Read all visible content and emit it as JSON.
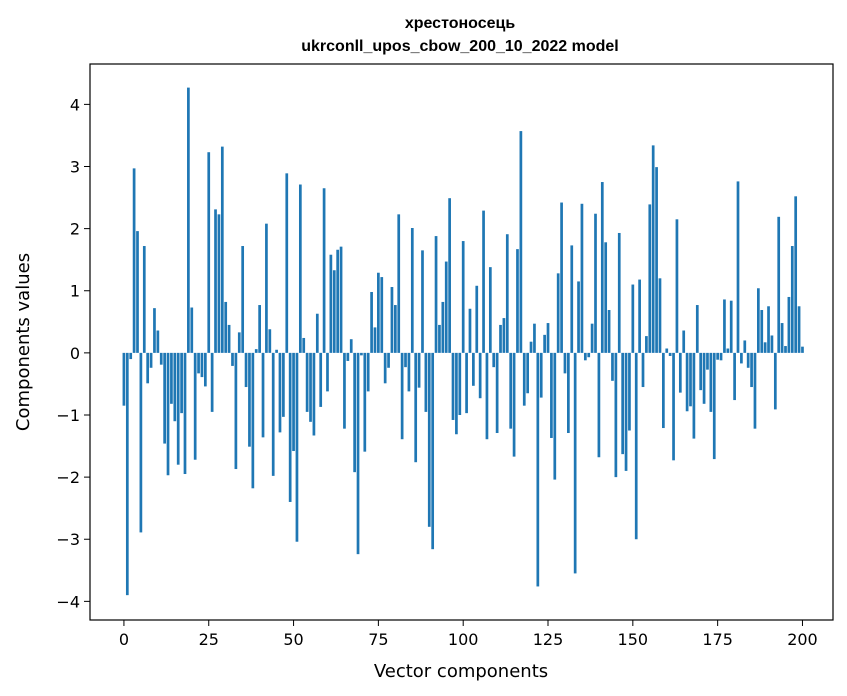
{
  "chart_data": {
    "type": "bar",
    "title_line1": "хрестоносець",
    "title_line2": "ukrconll_upos_cbow_200_10_2022 model",
    "xlabel": "Vector components",
    "ylabel": "Components values",
    "xlim": [
      -10,
      209
    ],
    "ylim": [
      -4.3,
      4.65
    ],
    "xticks": [
      0,
      25,
      50,
      75,
      100,
      125,
      150,
      175,
      200
    ],
    "yticks": [
      -4,
      -3,
      -2,
      -1,
      0,
      1,
      2,
      3,
      4
    ],
    "bar_color": "#1f77b4",
    "grid": false,
    "legend": "none",
    "values": [
      -0.85,
      -3.9,
      -0.1,
      2.97,
      1.96,
      -2.89,
      1.72,
      -0.49,
      -0.24,
      0.72,
      0.36,
      -0.19,
      -1.46,
      -1.97,
      -0.82,
      -1.1,
      -1.8,
      -0.97,
      -1.95,
      4.27,
      0.73,
      -1.72,
      -0.33,
      -0.39,
      -0.54,
      3.23,
      -0.95,
      2.31,
      2.23,
      3.32,
      0.82,
      0.45,
      -0.21,
      -1.87,
      0.33,
      1.72,
      -0.55,
      -1.51,
      -2.18,
      0.06,
      0.77,
      -1.36,
      2.08,
      0.38,
      -1.98,
      0.05,
      -1.28,
      -1.03,
      2.89,
      -2.4,
      -1.58,
      -3.04,
      2.71,
      0.24,
      -0.95,
      -1.11,
      -1.33,
      0.63,
      -0.87,
      2.65,
      -0.62,
      1.58,
      1.33,
      1.66,
      1.71,
      -1.22,
      -0.13,
      0.22,
      -1.92,
      -3.24,
      -0.04,
      -1.59,
      -0.62,
      0.98,
      0.41,
      1.29,
      1.22,
      -0.49,
      -0.24,
      1.06,
      0.77,
      2.23,
      -1.39,
      -0.23,
      -0.62,
      2.01,
      -1.76,
      -0.56,
      1.65,
      -0.95,
      -2.8,
      -3.16,
      1.88,
      0.45,
      0.82,
      1.47,
      2.49,
      -1.08,
      -1.31,
      -1.0,
      1.8,
      -0.97,
      0.71,
      -0.53,
      1.08,
      -0.73,
      2.29,
      -1.39,
      1.38,
      -0.23,
      -1.29,
      0.45,
      0.56,
      1.91,
      -1.22,
      -1.67,
      1.67,
      3.57,
      -0.85,
      -0.65,
      0.18,
      0.47,
      -3.76,
      -0.72,
      0.29,
      0.48,
      -1.37,
      -2.04,
      1.28,
      2.42,
      -0.33,
      -1.29,
      1.73,
      -3.55,
      1.15,
      2.4,
      -0.12,
      -0.07,
      0.47,
      2.24,
      -1.68,
      2.75,
      1.78,
      0.69,
      -0.45,
      -2.0,
      1.93,
      -1.63,
      -1.9,
      -1.25,
      1.1,
      -3.0,
      1.18,
      -0.55,
      0.27,
      2.39,
      3.34,
      2.99,
      1.2,
      -1.21,
      0.07,
      -0.05,
      -1.73,
      2.15,
      -0.64,
      0.36,
      -0.94,
      -0.86,
      -1.38,
      0.77,
      -0.6,
      -0.82,
      -0.27,
      -0.95,
      -1.71,
      -0.11,
      -0.12,
      0.86,
      0.07,
      0.84,
      -0.76,
      2.76,
      -0.17,
      0.2,
      -0.24,
      -0.55,
      -1.22,
      1.04,
      0.69,
      0.17,
      0.75,
      0.28,
      -0.91,
      2.19,
      0.48,
      0.11,
      0.9,
      1.72,
      2.52,
      0.75,
      0.1
    ]
  }
}
